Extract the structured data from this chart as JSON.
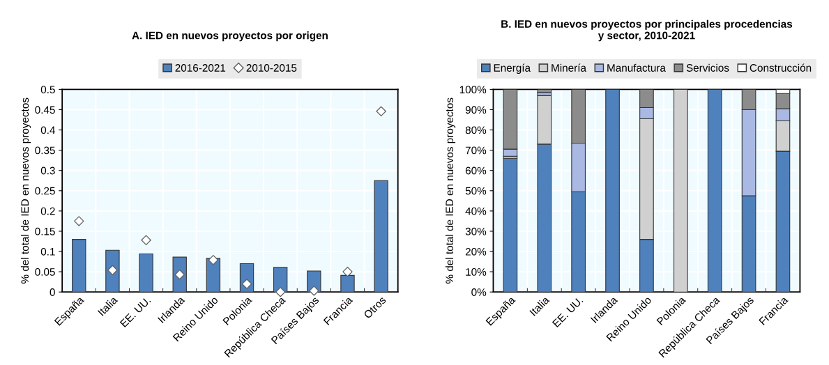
{
  "chart_data": [
    {
      "type": "bar",
      "title": "A. IED en nuevos proyectos por origen",
      "ylabel": "% del total de IED en nuevos proyectos",
      "categories": [
        "España",
        "Italia",
        "EE. UU.",
        "Irlanda",
        "Reino Unido",
        "Polonia",
        "República Checa",
        "Países Bajos",
        "Francia",
        "Otros"
      ],
      "series": [
        {
          "name": "2016-2021",
          "type": "bar",
          "color": "#4f81bd",
          "values": [
            0.13,
            0.103,
            0.094,
            0.086,
            0.083,
            0.07,
            0.061,
            0.052,
            0.041,
            0.275
          ]
        },
        {
          "name": "2010-2015",
          "type": "scatter",
          "marker": "diamond",
          "color": "#ffffff",
          "values": [
            0.175,
            0.054,
            0.128,
            0.043,
            0.079,
            0.02,
            0.0,
            0.003,
            0.05,
            0.446
          ]
        }
      ],
      "ylim": [
        0,
        0.5
      ],
      "yticks": [
        0,
        0.05,
        0.1,
        0.15,
        0.2,
        0.25,
        0.3,
        0.35,
        0.4,
        0.45,
        0.5
      ],
      "grid": true,
      "legend": "top"
    },
    {
      "type": "bar",
      "stacked": true,
      "title": "B. IED en nuevos proyectos por principales procedencias\ny sector, 2010-2021",
      "ylabel": "% del total de IED en nuevos proyectos",
      "categories": [
        "España",
        "Italia",
        "EE. UU.",
        "Irlanda",
        "Reino Unido",
        "Polonia",
        "República Checa",
        "Países Bajos",
        "Francia"
      ],
      "series": [
        {
          "name": "Energía",
          "color": "#4f81bd",
          "values": [
            66,
            73,
            49.5,
            100,
            26,
            0,
            100,
            47.5,
            69.5
          ]
        },
        {
          "name": "Minería",
          "color": "#d0d0d0",
          "values": [
            1,
            24,
            0,
            0,
            59.5,
            100,
            0,
            0,
            15
          ]
        },
        {
          "name": "Manufactura",
          "color": "#a9b9e3",
          "values": [
            3.5,
            1.5,
            24,
            0,
            5.5,
            0,
            0,
            42.5,
            6
          ]
        },
        {
          "name": "Servicios",
          "color": "#8c8c8c",
          "values": [
            29.5,
            1.5,
            26.5,
            0,
            9,
            0,
            0,
            10,
            7.5
          ]
        },
        {
          "name": "Construcción",
          "color": "#ffffff",
          "values": [
            0,
            0,
            0,
            0,
            0,
            0,
            0,
            0,
            2
          ]
        }
      ],
      "ylim": [
        0,
        100
      ],
      "yticks": [
        {
          "value": 0,
          "label": "0%"
        },
        {
          "value": 10,
          "label": "10%"
        },
        {
          "value": 20,
          "label": "20%"
        },
        {
          "value": 30,
          "label": "30%"
        },
        {
          "value": 40,
          "label": "40%"
        },
        {
          "value": 50,
          "label": "50%"
        },
        {
          "value": 60,
          "label": "60%"
        },
        {
          "value": 70,
          "label": "70%"
        },
        {
          "value": 80,
          "label": "80%"
        },
        {
          "value": 90,
          "label": "90%"
        },
        {
          "value": 100,
          "label": "100%"
        }
      ],
      "grid": true,
      "legend": "top"
    }
  ]
}
